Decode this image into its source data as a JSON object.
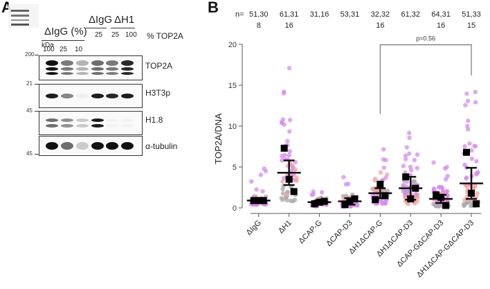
{
  "panel_a": {
    "letter": "A",
    "header": {
      "group1_label": "ΔIgG (%)",
      "group2_label": "ΔIgG",
      "group3_label": "ΔH1",
      "percent_label": "% TOP2A",
      "kda_label": "kDa",
      "lane_values": [
        "100",
        "25",
        "10",
        "25",
        "25",
        "100"
      ]
    },
    "blots": [
      {
        "name": "TOP2A",
        "marker_top": "200",
        "intensities": [
          1.0,
          0.55,
          0.3,
          0.6,
          0.55,
          0.9
        ]
      },
      {
        "name": "H3T3p",
        "marker_top": "21",
        "intensities": [
          0.95,
          0.5,
          0.05,
          0.95,
          0.9,
          0.95
        ]
      },
      {
        "name": "H1.8",
        "marker_top": "45",
        "intensities": [
          0.6,
          0.45,
          0.2,
          0.95,
          0.02,
          0.02
        ]
      },
      {
        "name": "α-tubulin",
        "marker_bottom": "45",
        "intensities": [
          1.0,
          0.6,
          0.2,
          1.0,
          1.0,
          1.0
        ]
      }
    ]
  },
  "panel_b": {
    "letter": "B",
    "n_prefix": "n=",
    "n_values": [
      {
        "line1": "51,30",
        "line2": "8"
      },
      {
        "line1": "61,31",
        "line2": "16"
      },
      {
        "line1": "31,16",
        "line2": ""
      },
      {
        "line1": "53,31",
        "line2": ""
      },
      {
        "line1": "32,32",
        "line2": "16"
      },
      {
        "line1": "61,32",
        "line2": ""
      },
      {
        "line1": "64,31",
        "line2": "16"
      },
      {
        "line1": "51,33",
        "line2": "15"
      }
    ],
    "p_value_label": "p=0.56"
  },
  "chart_data": {
    "type": "scatter",
    "title": "",
    "xlabel": "",
    "ylabel": "TOP2A/DNA",
    "ylim": [
      0,
      20
    ],
    "yticks": [
      0,
      5,
      10,
      15,
      20
    ],
    "categories": [
      "ΔIgG",
      "ΔH1",
      "ΔCAP-G",
      "ΔCAP-D3",
      "ΔH1ΔCAP-G",
      "ΔH1ΔCAP-D3",
      "ΔCAP-GΔCAP-D3",
      "ΔH1ΔCAP-GΔCAP-D3"
    ],
    "replicate_colors": {
      "rep1": "#d58af0",
      "rep2": "#f4a3a3",
      "rep3": "#a8a8a8"
    },
    "experiment_means": [
      [
        0.9,
        0.9,
        0.9
      ],
      [
        7.3,
        3.5,
        2.0
      ],
      [
        0.5,
        0.7,
        0.8
      ],
      [
        0.4,
        0.8,
        1.1
      ],
      [
        1.0,
        2.9,
        1.5
      ],
      [
        3.8,
        1.1,
        2.4
      ],
      [
        1.6,
        1.3,
        0.3
      ],
      [
        6.8,
        1.8,
        0.5
      ]
    ],
    "group_mean": [
      0.9,
      4.3,
      0.7,
      0.8,
      1.8,
      2.4,
      1.1,
      3.0
    ],
    "group_error": [
      0.3,
      1.5,
      0.2,
      0.4,
      0.6,
      1.4,
      0.5,
      1.9
    ],
    "point_range_max": [
      5.1,
      17.5,
      2.9,
      4.4,
      7.8,
      9.6,
      5.6,
      14.7
    ],
    "comparison": {
      "from": "ΔH1ΔCAP-G",
      "to": "ΔH1ΔCAP-GΔCAP-D3",
      "label": "p=0.56"
    }
  }
}
